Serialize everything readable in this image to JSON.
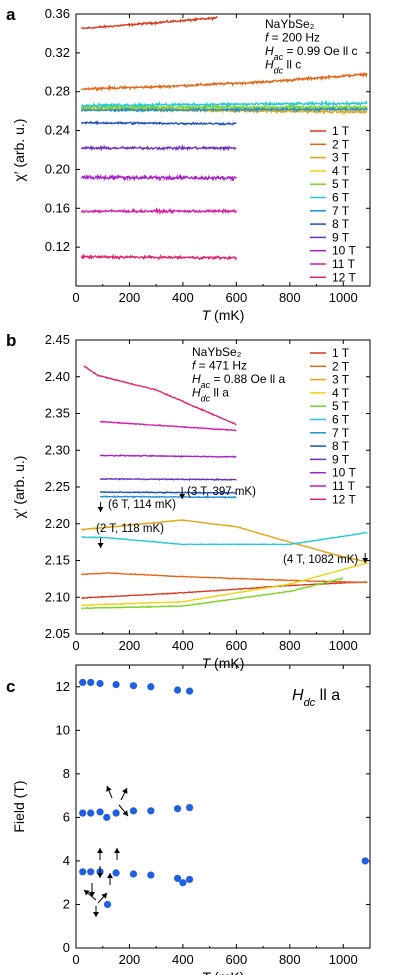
{
  "chart_data": [
    {
      "panel": "a",
      "type": "line",
      "xlabel": "T (mK)",
      "ylabel": "χ′ (arb. u.)",
      "xlim": [
        0,
        1100
      ],
      "ylim": [
        0.08,
        0.36
      ],
      "xticks": [
        0,
        200,
        400,
        600,
        800,
        1000
      ],
      "yticks": [
        0.12,
        0.16,
        0.2,
        0.24,
        0.28,
        0.32,
        0.36
      ],
      "info_lines": [
        "NaYbSe₂",
        "f = 200 Hz",
        "Hac = 0.99 Oe ll c",
        "Hdc ll c"
      ],
      "legend_position": "right",
      "series": [
        {
          "name": "1 T",
          "color": "#d23a1e",
          "x": [
            20,
            530
          ],
          "y": [
            0.345,
            0.356
          ],
          "noise": 0.0015
        },
        {
          "name": "2 T",
          "color": "#e0661a",
          "x": [
            20,
            300,
            700,
            1090
          ],
          "y": [
            0.283,
            0.285,
            0.29,
            0.298
          ],
          "noise": 0.0018
        },
        {
          "name": "3 T",
          "color": "#e0a515",
          "x": [
            20,
            1090
          ],
          "y": [
            0.262,
            0.259
          ],
          "noise": 0.002
        },
        {
          "name": "4 T",
          "color": "#e8d31a",
          "x": [
            20,
            1090
          ],
          "y": [
            0.262,
            0.262
          ],
          "noise": 0.002
        },
        {
          "name": "5 T",
          "color": "#7dd321",
          "x": [
            20,
            1090
          ],
          "y": [
            0.264,
            0.264
          ],
          "noise": 0.002
        },
        {
          "name": "6 T",
          "color": "#23c8d6",
          "x": [
            20,
            1090
          ],
          "y": [
            0.266,
            0.268
          ],
          "noise": 0.002
        },
        {
          "name": "7 T",
          "color": "#1f8fd8",
          "x": [
            20,
            1090
          ],
          "y": [
            0.261,
            0.262
          ],
          "noise": 0.0018
        },
        {
          "name": "8 T",
          "color": "#1d4fb8",
          "x": [
            20,
            600
          ],
          "y": [
            0.248,
            0.247
          ],
          "noise": 0.0015
        },
        {
          "name": "9 T",
          "color": "#6a2fc4",
          "x": [
            20,
            600
          ],
          "y": [
            0.222,
            0.222
          ],
          "noise": 0.002
        },
        {
          "name": "10 T",
          "color": "#a51fc9",
          "x": [
            20,
            600
          ],
          "y": [
            0.192,
            0.191
          ],
          "noise": 0.003
        },
        {
          "name": "11 T",
          "color": "#d41ea4",
          "x": [
            20,
            600
          ],
          "y": [
            0.157,
            0.157
          ],
          "noise": 0.002
        },
        {
          "name": "12 T",
          "color": "#e0206a",
          "x": [
            20,
            600
          ],
          "y": [
            0.11,
            0.109
          ],
          "noise": 0.002
        }
      ]
    },
    {
      "panel": "b",
      "type": "line",
      "xlabel": "T (mK)",
      "ylabel": "χ′ (arb. u.)",
      "xlim": [
        0,
        1100
      ],
      "ylim": [
        2.05,
        2.45
      ],
      "xticks": [
        0,
        200,
        400,
        600,
        800,
        1000
      ],
      "yticks": [
        2.05,
        2.1,
        2.15,
        2.2,
        2.25,
        2.3,
        2.35,
        2.4,
        2.45
      ],
      "info_lines": [
        "NaYbSe₂",
        "f = 471 Hz",
        "Hac = 0.88 Oe ll a",
        "Hdc ll a"
      ],
      "legend_position": "right",
      "series": [
        {
          "name": "1 T",
          "color": "#d23a1e",
          "x": [
            20,
            400,
            800,
            1090
          ],
          "y": [
            2.099,
            2.106,
            2.116,
            2.121
          ],
          "noise": 0.0008
        },
        {
          "name": "2 T",
          "color": "#e0661a",
          "x": [
            20,
            118,
            400,
            800,
            1090
          ],
          "y": [
            2.131,
            2.133,
            2.128,
            2.123,
            2.12
          ],
          "noise": 0.0008
        },
        {
          "name": "3 T",
          "color": "#e0a515",
          "x": [
            20,
            200,
            397,
            600,
            800,
            1000,
            1090
          ],
          "y": [
            2.192,
            2.198,
            2.205,
            2.196,
            2.175,
            2.155,
            2.148
          ],
          "noise": 0.0008
        },
        {
          "name": "4 T",
          "color": "#e8d31a",
          "x": [
            20,
            400,
            800,
            1082,
            1090
          ],
          "y": [
            2.089,
            2.094,
            2.118,
            2.146,
            2.146
          ],
          "noise": 0.0008
        },
        {
          "name": "5 T",
          "color": "#7dd321",
          "x": [
            20,
            400,
            800,
            1000
          ],
          "y": [
            2.085,
            2.088,
            2.108,
            2.126
          ],
          "noise": 0.0008
        },
        {
          "name": "6 T",
          "color": "#23c8d6",
          "x": [
            20,
            114,
            400,
            800,
            1090
          ],
          "y": [
            2.182,
            2.181,
            2.172,
            2.172,
            2.188
          ],
          "noise": 0.0008
        },
        {
          "name": "7 T",
          "color": "#1f8fd8",
          "x": [
            90,
            600
          ],
          "y": [
            2.237,
            2.236
          ],
          "noise": 0.001
        },
        {
          "name": "8 T",
          "color": "#1d4fb8",
          "x": [
            90,
            600
          ],
          "y": [
            2.243,
            2.242
          ],
          "noise": 0.001
        },
        {
          "name": "9 T",
          "color": "#6a2fc4",
          "x": [
            90,
            600
          ],
          "y": [
            2.261,
            2.26
          ],
          "noise": 0.001
        },
        {
          "name": "10 T",
          "color": "#a51fc9",
          "x": [
            90,
            600
          ],
          "y": [
            2.293,
            2.291
          ],
          "noise": 0.001
        },
        {
          "name": "11 T",
          "color": "#d41ea4",
          "x": [
            90,
            600
          ],
          "y": [
            2.339,
            2.327
          ],
          "noise": 0.001
        },
        {
          "name": "12 T",
          "color": "#e0206a",
          "x": [
            30,
            80,
            300,
            600
          ],
          "y": [
            2.415,
            2.402,
            2.382,
            2.335
          ],
          "noise": 0.001
        }
      ],
      "annotations": [
        {
          "text": "(6 T, 114 mK)",
          "x": 114,
          "y": 2.181
        },
        {
          "text": "(3 T, 397 mK)",
          "x": 397,
          "y": 2.205
        },
        {
          "text": "(2 T, 118 mK)",
          "x": 118,
          "y": 2.133
        },
        {
          "text": "(4 T, 1082 mK)",
          "x": 1082,
          "y": 2.146
        }
      ]
    },
    {
      "panel": "c",
      "type": "scatter",
      "xlabel": "T (mK)",
      "ylabel": "Field (T)",
      "xlim": [
        0,
        1100
      ],
      "ylim": [
        0,
        13
      ],
      "xticks": [
        0,
        200,
        400,
        600,
        800,
        1000
      ],
      "yticks": [
        0,
        2,
        4,
        6,
        8,
        10,
        12
      ],
      "label": "Hdc ll a",
      "color": "#1f5fe0",
      "points": [
        [
          25,
          12.2
        ],
        [
          55,
          12.2
        ],
        [
          90,
          12.15
        ],
        [
          150,
          12.1
        ],
        [
          215,
          12.05
        ],
        [
          280,
          12.0
        ],
        [
          380,
          11.85
        ],
        [
          425,
          11.8
        ],
        [
          25,
          6.2
        ],
        [
          55,
          6.2
        ],
        [
          90,
          6.25
        ],
        [
          115,
          6.0
        ],
        [
          150,
          6.2
        ],
        [
          215,
          6.3
        ],
        [
          280,
          6.3
        ],
        [
          380,
          6.4
        ],
        [
          425,
          6.45
        ],
        [
          25,
          3.5
        ],
        [
          55,
          3.5
        ],
        [
          90,
          3.5
        ],
        [
          150,
          3.45
        ],
        [
          215,
          3.4
        ],
        [
          280,
          3.35
        ],
        [
          380,
          3.2
        ],
        [
          400,
          3.0
        ],
        [
          425,
          3.15
        ],
        [
          118,
          2.0
        ],
        [
          1082,
          4.0
        ]
      ]
    }
  ]
}
